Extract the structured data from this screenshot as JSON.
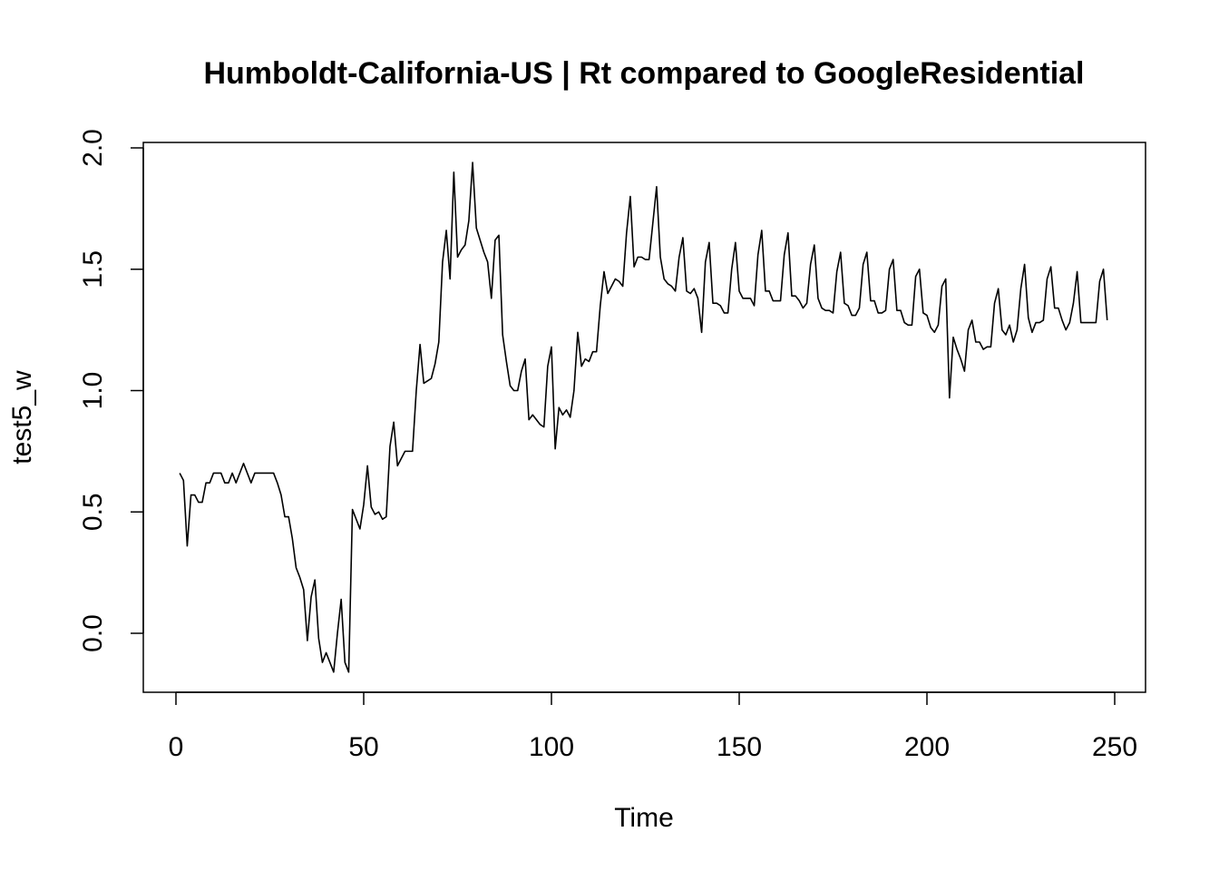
{
  "chart_data": {
    "type": "line",
    "title": "Humboldt-California-US | Rt compared to GoogleResidential",
    "xlabel": "Time",
    "ylabel": "test5_w",
    "xlim": [
      0,
      250
    ],
    "ylim": [
      -0.2,
      2.0
    ],
    "x_ticks": [
      0,
      50,
      100,
      150,
      200,
      250
    ],
    "y_ticks": [
      0.0,
      0.5,
      1.0,
      1.5,
      2.0
    ],
    "x_tick_labels": [
      "0",
      "50",
      "100",
      "150",
      "200",
      "250"
    ],
    "y_tick_labels": [
      "0.0",
      "0.5",
      "1.0",
      "1.5",
      "2.0"
    ],
    "grid": false,
    "line_color": "#000000",
    "series": [
      {
        "name": "test5_w",
        "x_start": 1,
        "values": [
          0.66,
          0.63,
          0.36,
          0.57,
          0.57,
          0.54,
          0.54,
          0.62,
          0.62,
          0.66,
          0.66,
          0.66,
          0.62,
          0.62,
          0.66,
          0.62,
          0.66,
          0.7,
          0.66,
          0.62,
          0.66,
          0.66,
          0.66,
          0.66,
          0.66,
          0.66,
          0.62,
          0.57,
          0.48,
          0.48,
          0.39,
          0.27,
          0.23,
          0.18,
          -0.03,
          0.15,
          0.22,
          -0.02,
          -0.12,
          -0.08,
          -0.12,
          -0.16,
          0.0,
          0.14,
          -0.12,
          -0.16,
          0.51,
          0.47,
          0.43,
          0.53,
          0.69,
          0.52,
          0.49,
          0.5,
          0.47,
          0.48,
          0.77,
          0.87,
          0.69,
          0.72,
          0.75,
          0.75,
          0.75,
          1.0,
          1.19,
          1.03,
          1.04,
          1.05,
          1.11,
          1.2,
          1.53,
          1.66,
          1.46,
          1.9,
          1.55,
          1.58,
          1.6,
          1.7,
          1.94,
          1.67,
          1.62,
          1.57,
          1.53,
          1.38,
          1.62,
          1.64,
          1.23,
          1.12,
          1.02,
          1.0,
          1.0,
          1.08,
          1.13,
          0.88,
          0.9,
          0.88,
          0.86,
          0.85,
          1.1,
          1.18,
          0.76,
          0.93,
          0.9,
          0.92,
          0.89,
          1.0,
          1.24,
          1.1,
          1.13,
          1.12,
          1.16,
          1.16,
          1.35,
          1.49,
          1.4,
          1.43,
          1.46,
          1.45,
          1.43,
          1.65,
          1.8,
          1.51,
          1.55,
          1.55,
          1.54,
          1.54,
          1.69,
          1.84,
          1.55,
          1.46,
          1.44,
          1.43,
          1.41,
          1.55,
          1.63,
          1.41,
          1.4,
          1.42,
          1.38,
          1.24,
          1.53,
          1.61,
          1.36,
          1.36,
          1.35,
          1.32,
          1.32,
          1.5,
          1.61,
          1.41,
          1.38,
          1.38,
          1.38,
          1.35,
          1.56,
          1.66,
          1.41,
          1.41,
          1.37,
          1.37,
          1.37,
          1.56,
          1.65,
          1.39,
          1.39,
          1.37,
          1.34,
          1.36,
          1.52,
          1.6,
          1.38,
          1.34,
          1.33,
          1.33,
          1.32,
          1.49,
          1.57,
          1.36,
          1.35,
          1.31,
          1.31,
          1.34,
          1.52,
          1.57,
          1.37,
          1.37,
          1.32,
          1.32,
          1.33,
          1.5,
          1.54,
          1.33,
          1.33,
          1.28,
          1.27,
          1.27,
          1.47,
          1.5,
          1.32,
          1.31,
          1.26,
          1.24,
          1.27,
          1.43,
          1.46,
          0.97,
          1.22,
          1.17,
          1.13,
          1.08,
          1.25,
          1.29,
          1.2,
          1.2,
          1.17,
          1.18,
          1.18,
          1.36,
          1.42,
          1.25,
          1.23,
          1.27,
          1.2,
          1.25,
          1.42,
          1.52,
          1.3,
          1.24,
          1.28,
          1.28,
          1.29,
          1.46,
          1.51,
          1.34,
          1.34,
          1.29,
          1.25,
          1.28,
          1.36,
          1.49,
          1.28,
          1.28,
          1.28,
          1.28,
          1.28,
          1.45,
          1.5,
          1.29
        ]
      }
    ]
  }
}
